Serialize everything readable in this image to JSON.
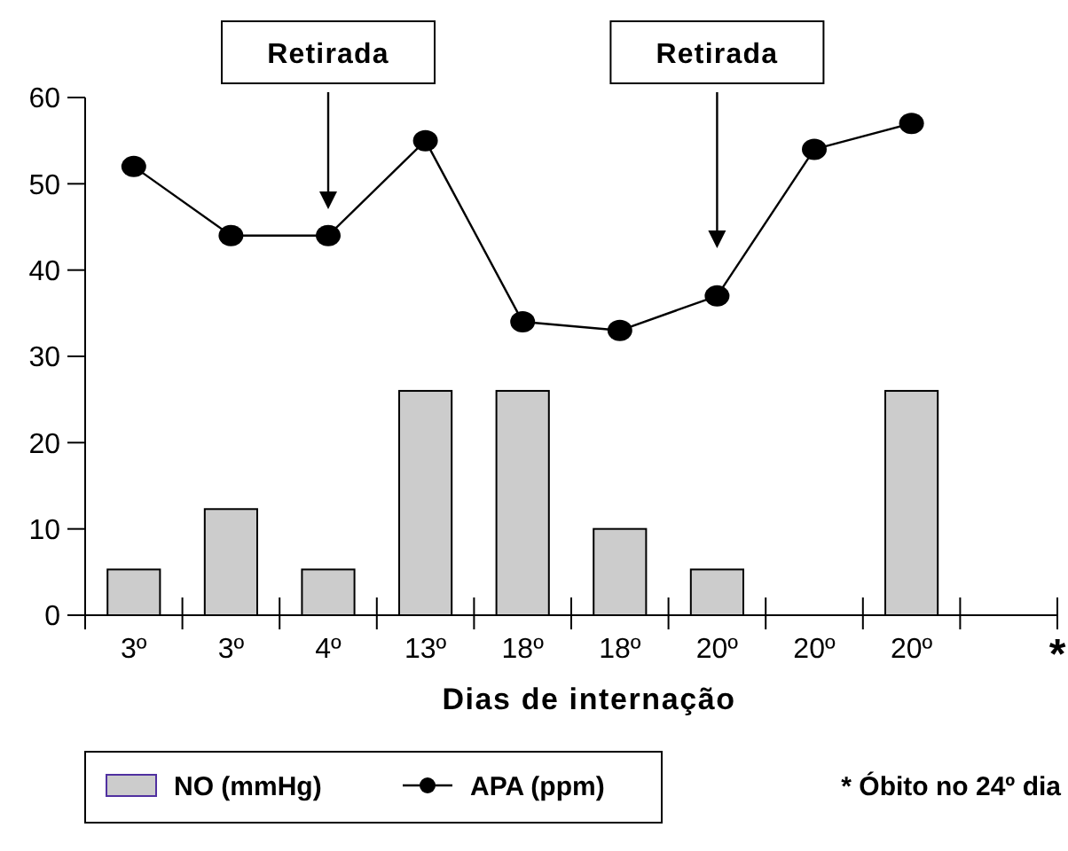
{
  "chart_data": {
    "type": "bar",
    "xlabel": "Dias de internação",
    "categories": [
      "3º",
      "3º",
      "4º",
      "13º",
      "18º",
      "18º",
      "20º",
      "20º",
      "20º",
      null
    ],
    "series": [
      {
        "name": "NO (mmHg)",
        "color": "#cccccc",
        "values": [
          5.3,
          12.3,
          5.3,
          26,
          26,
          10,
          5.3,
          null,
          26,
          null
        ]
      },
      {
        "name": "APA (ppm)",
        "type": "line",
        "color": "#000000",
        "marker": "circle",
        "values": [
          52,
          44,
          44,
          55,
          34,
          33,
          37,
          54,
          57,
          null
        ]
      }
    ],
    "ylim": [
      0,
      60
    ],
    "yticks": [
      0,
      10,
      20,
      30,
      40,
      50,
      60
    ],
    "grid": false,
    "legend": "bottom",
    "annotations": [
      "Retirada",
      "Retirada",
      "*",
      "* Óbito no 24º dia"
    ]
  }
}
